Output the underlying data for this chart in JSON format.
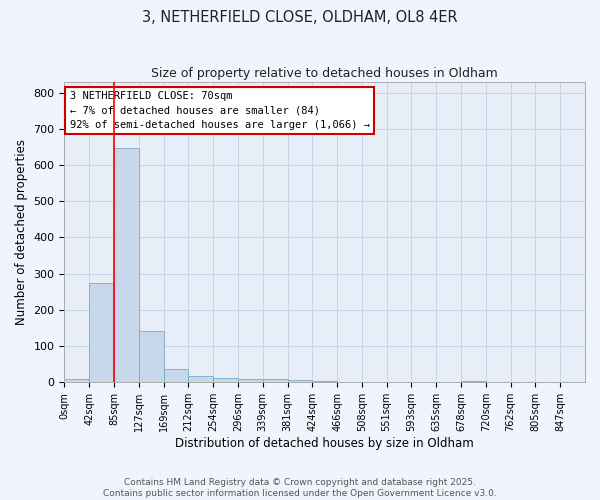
{
  "title_line1": "3, NETHERFIELD CLOSE, OLDHAM, OL8 4ER",
  "title_line2": "Size of property relative to detached houses in Oldham",
  "xlabel": "Distribution of detached houses by size in Oldham",
  "ylabel": "Number of detached properties",
  "bin_labels": [
    "0sqm",
    "42sqm",
    "85sqm",
    "127sqm",
    "169sqm",
    "212sqm",
    "254sqm",
    "296sqm",
    "339sqm",
    "381sqm",
    "424sqm",
    "466sqm",
    "508sqm",
    "551sqm",
    "593sqm",
    "635sqm",
    "678sqm",
    "720sqm",
    "762sqm",
    "805sqm",
    "847sqm"
  ],
  "bar_values": [
    8,
    275,
    648,
    143,
    37,
    18,
    12,
    10,
    10,
    7,
    4,
    0,
    0,
    0,
    0,
    0,
    4,
    0,
    0,
    0,
    0
  ],
  "bar_color": "#c8d8ec",
  "bar_edge_color": "#7aaac8",
  "grid_color": "#c8d4e8",
  "background_color": "#e8eef8",
  "fig_background_color": "#f0f4fc",
  "red_line_x": 2,
  "annotation_text": "3 NETHERFIELD CLOSE: 70sqm\n← 7% of detached houses are smaller (84)\n92% of semi-detached houses are larger (1,066) →",
  "annotation_box_color": "#ffffff",
  "annotation_box_edge": "#cc0000",
  "footer_text": "Contains HM Land Registry data © Crown copyright and database right 2025.\nContains public sector information licensed under the Open Government Licence v3.0.",
  "ylim": [
    0,
    830
  ],
  "yticks": [
    0,
    100,
    200,
    300,
    400,
    500,
    600,
    700,
    800
  ]
}
